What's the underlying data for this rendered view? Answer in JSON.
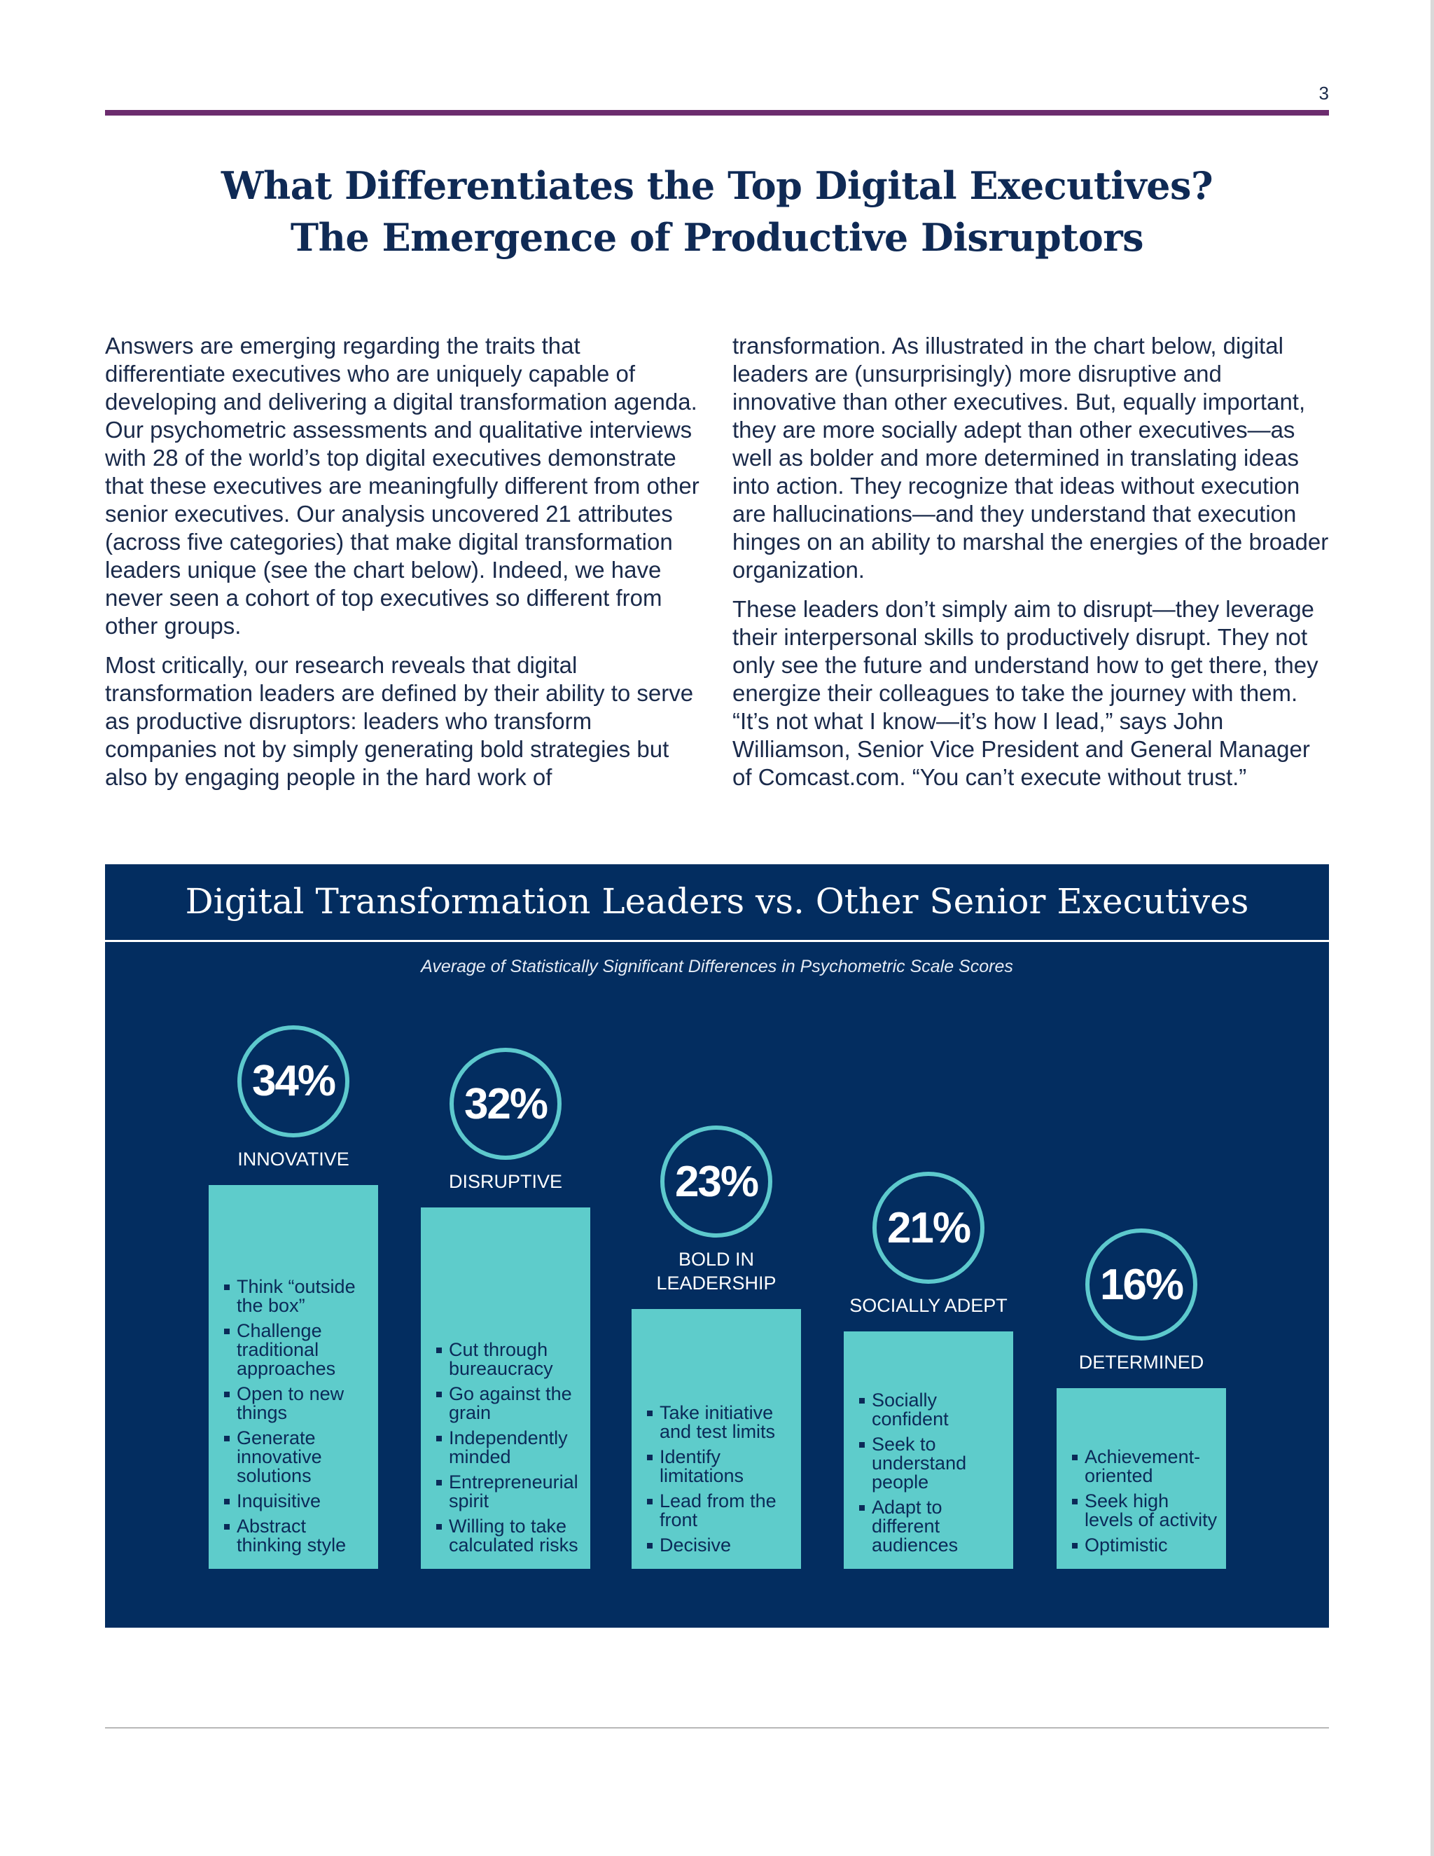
{
  "page": {
    "number": "3",
    "title_line1": "What Differentiates the Top Digital Executives?",
    "title_line2": "The Emergence of Productive Disruptors"
  },
  "body": {
    "left_p1": "Answers are emerging regarding the traits that differentiate executives who are uniquely capable of developing and delivering a digital transformation agenda. Our psychometric assessments and qualitative interviews with 28 of the world’s top digital executives demonstrate that these executives are meaningfully different from other senior executives. Our analysis uncovered 21 attributes (across five categories) that make digital transformation leaders unique (see the chart below). Indeed, we have never seen a cohort of top executives so different from other groups.",
    "left_p2": "Most critically, our research reveals that digital transformation leaders are defined by their ability to serve as productive disruptors: leaders who transform companies not by simply generating bold strategies but also by engaging people in the hard work of",
    "right_p1": "transformation. As illustrated in the chart below, digital leaders are (unsurprisingly) more disruptive and innovative than other executives. But, equally important, they are more socially adept than other executives—as well as bolder and more determined in translating ideas into action. They recognize that ideas without execution are hallucinations—and they understand that execution hinges on an ability to marshal the energies of the broader organization.",
    "right_p2": "These leaders don’t simply aim to disrupt—they leverage their interpersonal skills to productively disrupt. They not only see the future and understand how to get there, they energize their colleagues to take the journey with them. “It’s not what I know—it’s how I lead,” says John Williamson, Senior Vice President and General Manager of Comcast.com. “You can’t execute without trust.”"
  },
  "chart_data": {
    "type": "bar",
    "title": "Digital Transformation Leaders vs. Other Senior Executives",
    "subtitle": "Average of Statistically Significant Differences in Psychometric Scale Scores",
    "unit": "%",
    "categories": [
      "INNOVATIVE",
      "DISRUPTIVE",
      "BOLD IN LEADERSHIP",
      "SOCIALLY ADEPT",
      "DETERMINED"
    ],
    "values": [
      34,
      32,
      23,
      21,
      16
    ],
    "value_labels": [
      "34%",
      "32%",
      "23%",
      "21%",
      "16%"
    ],
    "label_lines": [
      [
        "INNOVATIVE"
      ],
      [
        "DISRUPTIVE"
      ],
      [
        "BOLD IN",
        "LEADERSHIP"
      ],
      [
        "SOCIALLY ADEPT"
      ],
      [
        "DETERMINED"
      ]
    ],
    "traits": [
      [
        "Think “outside the box”",
        "Challenge traditional approaches",
        "Open to new things",
        "Generate innovative solutions",
        "Inquisitive",
        "Abstract thinking style"
      ],
      [
        "Cut through bureaucracy",
        "Go against the grain",
        "Independently minded",
        "Entrepreneurial spirit",
        "Willing to take calculated risks"
      ],
      [
        "Take initiative and test limits",
        "Identify limitations",
        "Lead from the front",
        "Decisive"
      ],
      [
        "Socially confident",
        "Seek to understand people",
        "Adapt to different audiences"
      ],
      [
        "Achievement-oriented",
        "Seek high levels of activity",
        "Optimistic"
      ]
    ],
    "colors": {
      "panel": "#032d60",
      "bar": "#5ecccb",
      "ring": "#5dc9cd"
    }
  }
}
